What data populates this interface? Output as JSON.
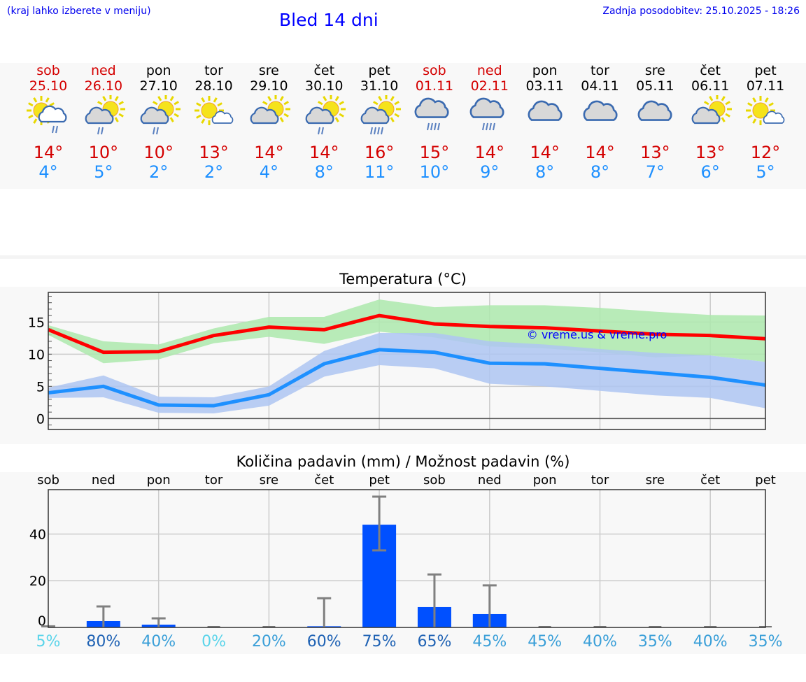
{
  "header": {
    "hint": "(kraj lahko izberete v meniju)",
    "title": "Bled 14 dni",
    "updated": "Zadnja posodobitev: 25.10.2025 - 18:26"
  },
  "days": [
    {
      "name": "sob",
      "date": "25.10",
      "weekend": true,
      "icon": "sun-cloud-light-rain",
      "high": "14°",
      "low": "4°"
    },
    {
      "name": "ned",
      "date": "26.10",
      "weekend": true,
      "icon": "sun-grey-cloud-rain",
      "high": "10°",
      "low": "5°"
    },
    {
      "name": "pon",
      "date": "27.10",
      "weekend": false,
      "icon": "sun-grey-cloud-rain",
      "high": "10°",
      "low": "2°"
    },
    {
      "name": "tor",
      "date": "28.10",
      "weekend": false,
      "icon": "sun-small-cloud",
      "high": "13°",
      "low": "2°"
    },
    {
      "name": "sre",
      "date": "29.10",
      "weekend": false,
      "icon": "sun-grey-cloud",
      "high": "14°",
      "low": "4°"
    },
    {
      "name": "čet",
      "date": "30.10",
      "weekend": false,
      "icon": "sun-grey-cloud-rain",
      "high": "14°",
      "low": "8°"
    },
    {
      "name": "pet",
      "date": "31.10",
      "weekend": false,
      "icon": "sun-grey-cloud-heavy-rain",
      "high": "16°",
      "low": "11°"
    },
    {
      "name": "sob",
      "date": "01.11",
      "weekend": true,
      "icon": "overcast-rain",
      "high": "15°",
      "low": "10°"
    },
    {
      "name": "ned",
      "date": "02.11",
      "weekend": true,
      "icon": "overcast-rain",
      "high": "14°",
      "low": "9°"
    },
    {
      "name": "pon",
      "date": "03.11",
      "weekend": false,
      "icon": "overcast",
      "high": "14°",
      "low": "8°"
    },
    {
      "name": "tor",
      "date": "04.11",
      "weekend": false,
      "icon": "overcast",
      "high": "14°",
      "low": "8°"
    },
    {
      "name": "sre",
      "date": "05.11",
      "weekend": false,
      "icon": "overcast",
      "high": "13°",
      "low": "7°"
    },
    {
      "name": "čet",
      "date": "06.11",
      "weekend": false,
      "icon": "sun-grey-cloud",
      "high": "13°",
      "low": "6°"
    },
    {
      "name": "pet",
      "date": "07.11",
      "weekend": false,
      "icon": "sun-small-cloud",
      "high": "12°",
      "low": "5°"
    }
  ],
  "colors": {
    "weekend": "#d40000",
    "weekday": "#000000",
    "high": "#ff0000",
    "low": "#1e90ff",
    "high_band": "#ade9ad",
    "low_band": "#aec6f2",
    "bar": "#0050ff",
    "err": "#808080"
  },
  "chart_data": [
    {
      "type": "line",
      "title": "Temperatura (°C)",
      "ylim": [
        -1.7,
        19.6
      ],
      "yticks": [
        "0",
        "5",
        "10",
        "15"
      ],
      "ytick_values": [
        0,
        5,
        10,
        15
      ],
      "categories": [
        "sob",
        "ned",
        "pon",
        "tor",
        "sre",
        "čet",
        "pet",
        "sob",
        "ned",
        "pon",
        "tor",
        "sre",
        "čet",
        "pet"
      ],
      "watermark": "© vreme.us & vreme.pro",
      "series": [
        {
          "name": "max",
          "values": [
            13.8,
            10.3,
            10.4,
            12.9,
            14.2,
            13.8,
            16.0,
            14.7,
            14.3,
            14.1,
            13.6,
            13.1,
            12.9,
            12.4
          ],
          "band_low": [
            13.0,
            8.6,
            9.2,
            11.7,
            12.7,
            11.6,
            13.5,
            12.6,
            11.2,
            10.9,
            10.3,
            9.5,
            9.8,
            8.8
          ],
          "band_high": [
            14.5,
            12.0,
            11.5,
            14.0,
            15.8,
            15.8,
            18.5,
            17.3,
            17.6,
            17.6,
            17.2,
            16.6,
            16.1,
            16.0
          ]
        },
        {
          "name": "min",
          "values": [
            4.0,
            5.0,
            2.1,
            2.0,
            3.7,
            8.5,
            10.7,
            10.3,
            8.6,
            8.5,
            7.8,
            7.1,
            6.4,
            5.2
          ],
          "band_low": [
            3.2,
            3.3,
            0.9,
            0.8,
            2.0,
            6.5,
            8.3,
            7.8,
            5.4,
            5.0,
            4.3,
            3.6,
            3.2,
            1.6
          ],
          "band_high": [
            4.8,
            6.7,
            3.4,
            3.3,
            5.0,
            10.5,
            13.3,
            13.3,
            12.0,
            11.5,
            10.8,
            10.2,
            9.8,
            8.8
          ]
        }
      ]
    },
    {
      "type": "bar",
      "title": "Količina padavin (mm) / Možnost padavin (%)",
      "ylim": [
        0,
        59
      ],
      "yticks": [
        "0",
        "20",
        "40"
      ],
      "ytick_values": [
        0,
        20,
        40
      ],
      "categories": [
        "sob",
        "ned",
        "pon",
        "tor",
        "sre",
        "čet",
        "pet",
        "sob",
        "ned",
        "pon",
        "tor",
        "sre",
        "čet",
        "pet"
      ],
      "values": [
        0,
        2.7,
        1.2,
        0,
        0,
        0.5,
        44,
        8.7,
        5.7,
        0,
        0,
        0,
        0,
        0
      ],
      "err_high": [
        0.5,
        9,
        3.9,
        0,
        0,
        12.5,
        56,
        22.7,
        18,
        0,
        0,
        0,
        0,
        0
      ],
      "err_low": [
        0,
        0,
        0,
        0,
        0,
        0,
        33,
        0,
        0,
        0,
        0,
        0,
        0,
        0
      ],
      "probability": [
        "5%",
        "80%",
        "40%",
        "0%",
        "20%",
        "60%",
        "75%",
        "65%",
        "45%",
        "45%",
        "40%",
        "35%",
        "40%",
        "35%"
      ]
    }
  ]
}
